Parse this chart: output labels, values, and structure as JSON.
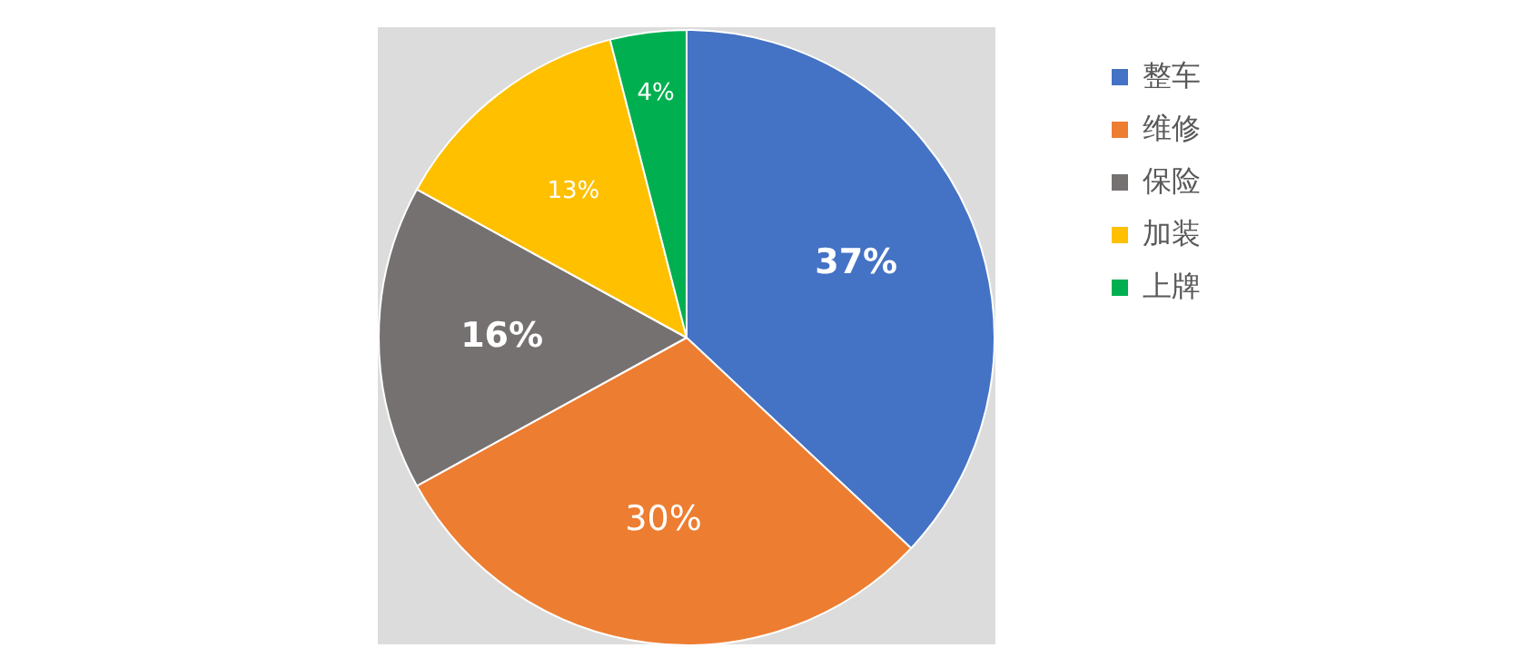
{
  "chart_data": {
    "type": "pie",
    "categories": [
      "整车",
      "维修",
      "保险",
      "加装",
      "上牌"
    ],
    "values": [
      37,
      30,
      16,
      13,
      4
    ],
    "colors": [
      "#4472c4",
      "#ed7d31",
      "#767171",
      "#ffc000",
      "#00b050"
    ],
    "value_labels": [
      "37%",
      "30%",
      "16%",
      "13%",
      "4%"
    ],
    "legend": "top right"
  }
}
